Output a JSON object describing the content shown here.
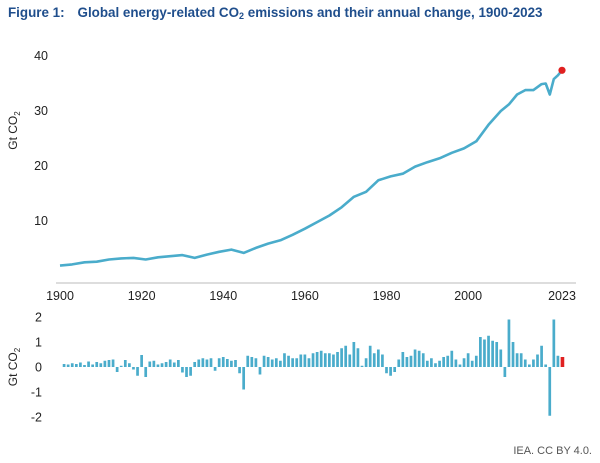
{
  "header": {
    "figure_num": "Figure 1:",
    "title_pre": "Global energy-related CO",
    "title_sub": "2",
    "title_post": " emissions and their annual change, 1900-2023"
  },
  "credit": "IEA. CC BY 4.0.",
  "colors": {
    "series": "#4aaccb",
    "highlight": "#e02020",
    "text": "#222222",
    "title": "#1f4e8c"
  },
  "chart_data": [
    {
      "type": "line",
      "title": "Global energy-related CO2 emissions",
      "ylabel_main": "Gt CO",
      "ylabel_sub": "2",
      "ylim": [
        0,
        42
      ],
      "yticks": [
        10,
        20,
        30,
        40
      ],
      "xlim": [
        1900,
        2023
      ],
      "xticks": [
        1900,
        1920,
        1940,
        1960,
        1980,
        2000,
        2023
      ],
      "points": [
        [
          1900,
          1.9
        ],
        [
          1903,
          2.1
        ],
        [
          1906,
          2.5
        ],
        [
          1909,
          2.6
        ],
        [
          1912,
          3.0
        ],
        [
          1915,
          3.2
        ],
        [
          1918,
          3.3
        ],
        [
          1921,
          3.0
        ],
        [
          1924,
          3.4
        ],
        [
          1927,
          3.6
        ],
        [
          1930,
          3.8
        ],
        [
          1933,
          3.3
        ],
        [
          1936,
          3.9
        ],
        [
          1939,
          4.4
        ],
        [
          1942,
          4.8
        ],
        [
          1945,
          4.2
        ],
        [
          1948,
          5.1
        ],
        [
          1951,
          5.9
        ],
        [
          1954,
          6.5
        ],
        [
          1957,
          7.5
        ],
        [
          1960,
          8.6
        ],
        [
          1963,
          9.8
        ],
        [
          1966,
          11.0
        ],
        [
          1969,
          12.5
        ],
        [
          1972,
          14.4
        ],
        [
          1975,
          15.3
        ],
        [
          1978,
          17.4
        ],
        [
          1981,
          18.1
        ],
        [
          1984,
          18.6
        ],
        [
          1987,
          19.9
        ],
        [
          1990,
          20.7
        ],
        [
          1993,
          21.4
        ],
        [
          1996,
          22.4
        ],
        [
          1999,
          23.2
        ],
        [
          2002,
          24.5
        ],
        [
          2005,
          27.5
        ],
        [
          2008,
          30.0
        ],
        [
          2010,
          31.2
        ],
        [
          2012,
          33.0
        ],
        [
          2014,
          33.8
        ],
        [
          2016,
          33.8
        ],
        [
          2018,
          34.9
        ],
        [
          2019,
          35.0
        ],
        [
          2020,
          33.0
        ],
        [
          2021,
          35.8
        ],
        [
          2022,
          36.5
        ],
        [
          2023,
          37.4
        ]
      ],
      "highlight_point": [
        2023,
        37.4
      ]
    },
    {
      "type": "bar",
      "title": "Annual change",
      "ylabel_main": "Gt CO",
      "ylabel_sub": "2",
      "ylim": [
        -2.2,
        2.2
      ],
      "yticks": [
        2,
        1,
        0,
        -1,
        -2
      ],
      "x": [
        1901,
        1902,
        1903,
        1904,
        1905,
        1906,
        1907,
        1908,
        1909,
        1910,
        1911,
        1912,
        1913,
        1914,
        1915,
        1916,
        1917,
        1918,
        1919,
        1920,
        1921,
        1922,
        1923,
        1924,
        1925,
        1926,
        1927,
        1928,
        1929,
        1930,
        1931,
        1932,
        1933,
        1934,
        1935,
        1936,
        1937,
        1938,
        1939,
        1940,
        1941,
        1942,
        1943,
        1944,
        1945,
        1946,
        1947,
        1948,
        1949,
        1950,
        1951,
        1952,
        1953,
        1954,
        1955,
        1956,
        1957,
        1958,
        1959,
        1960,
        1961,
        1962,
        1963,
        1964,
        1965,
        1966,
        1967,
        1968,
        1969,
        1970,
        1971,
        1972,
        1973,
        1974,
        1975,
        1976,
        1977,
        1978,
        1979,
        1980,
        1981,
        1982,
        1983,
        1984,
        1985,
        1986,
        1987,
        1988,
        1989,
        1990,
        1991,
        1992,
        1993,
        1994,
        1995,
        1996,
        1997,
        1998,
        1999,
        2000,
        2001,
        2002,
        2003,
        2004,
        2005,
        2006,
        2007,
        2008,
        2009,
        2010,
        2011,
        2012,
        2013,
        2014,
        2015,
        2016,
        2017,
        2018,
        2019,
        2020,
        2021,
        2022,
        2023
      ],
      "values": [
        0.12,
        0.1,
        0.15,
        0.12,
        0.18,
        0.08,
        0.22,
        0.1,
        0.2,
        0.15,
        0.25,
        0.28,
        0.3,
        -0.2,
        0.05,
        0.28,
        0.15,
        -0.1,
        -0.35,
        0.48,
        -0.4,
        0.22,
        0.25,
        0.1,
        0.15,
        0.2,
        0.3,
        0.18,
        0.28,
        -0.22,
        -0.4,
        -0.35,
        0.2,
        0.3,
        0.35,
        0.3,
        0.35,
        -0.15,
        0.35,
        0.4,
        0.32,
        0.25,
        0.28,
        -0.25,
        -0.9,
        0.45,
        0.4,
        0.35,
        -0.3,
        0.45,
        0.4,
        0.3,
        0.35,
        0.25,
        0.55,
        0.45,
        0.35,
        0.35,
        0.5,
        0.5,
        0.35,
        0.55,
        0.6,
        0.65,
        0.55,
        0.55,
        0.5,
        0.6,
        0.75,
        0.85,
        0.5,
        1.0,
        0.75,
        0.05,
        0.35,
        0.85,
        0.55,
        0.7,
        0.5,
        -0.25,
        -0.35,
        -0.2,
        0.3,
        0.6,
        0.4,
        0.45,
        0.7,
        0.65,
        0.55,
        0.25,
        0.35,
        0.15,
        0.25,
        0.4,
        0.45,
        0.65,
        0.3,
        0.1,
        0.35,
        0.55,
        0.25,
        0.45,
        1.2,
        1.1,
        1.25,
        1.05,
        1.0,
        0.7,
        -0.4,
        1.9,
        1.0,
        0.55,
        0.55,
        0.3,
        0.1,
        0.3,
        0.5,
        0.85,
        0.1,
        -1.95,
        1.9,
        0.45,
        0.4
      ],
      "highlight_x": 2023
    }
  ]
}
